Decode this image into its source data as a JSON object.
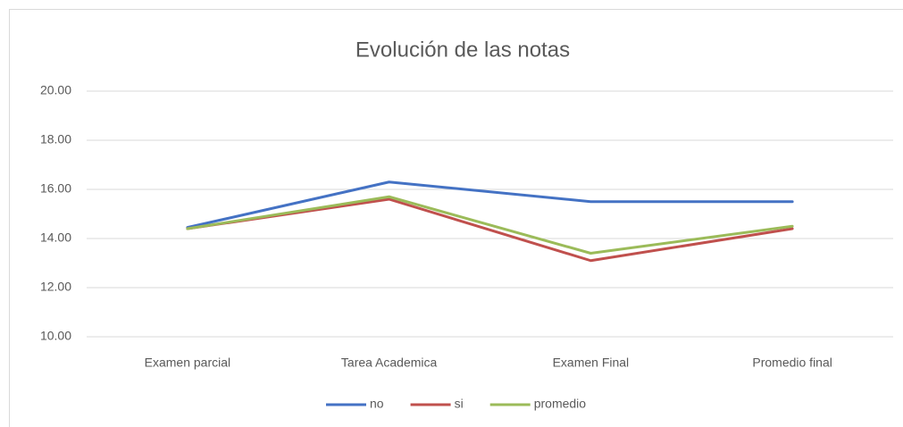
{
  "chart_data": {
    "type": "line",
    "title": "Evolución de las notas",
    "categories": [
      "Examen parcial",
      "Tarea Academica",
      "Examen Final",
      "Promedio final"
    ],
    "series": [
      {
        "name": "no",
        "color": "#4472c4",
        "values": [
          14.45,
          16.3,
          15.5,
          15.5
        ]
      },
      {
        "name": "si",
        "color": "#c0504d",
        "values": [
          14.4,
          15.6,
          13.1,
          14.4
        ]
      },
      {
        "name": "promedio",
        "color": "#9bbb59",
        "values": [
          14.4,
          15.7,
          13.4,
          14.5
        ]
      }
    ],
    "ylim": [
      10,
      20
    ],
    "yticks": [
      {
        "value": 10,
        "label": "10.00"
      },
      {
        "value": 12,
        "label": "12.00"
      },
      {
        "value": 14,
        "label": "14.00"
      },
      {
        "value": 16,
        "label": "16.00"
      },
      {
        "value": 18,
        "label": "18.00"
      },
      {
        "value": 20,
        "label": "20.00"
      }
    ],
    "grid": true,
    "legend": "bottom"
  }
}
